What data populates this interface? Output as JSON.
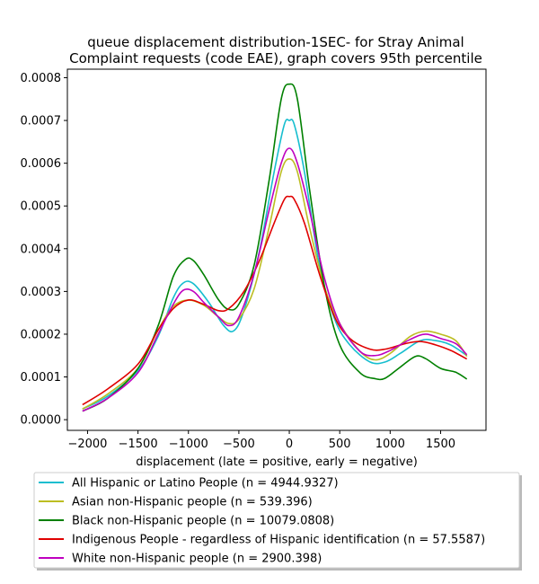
{
  "chart_data": {
    "type": "line",
    "title": [
      "queue displacement distribution-1SEC-  for Stray Animal",
      "Complaint  requests (code EAE), graph covers 95th percentile"
    ],
    "xlabel": "displacement (late = positive, early = negative)",
    "ylabel": "",
    "xlim": [
      -2200,
      1950
    ],
    "ylim": [
      -2.5e-05,
      0.00082
    ],
    "xticks": [
      -2000,
      -1500,
      -1000,
      -500,
      0,
      500,
      1000,
      1500
    ],
    "xtick_labels": [
      "−2000",
      "−1500",
      "−1000",
      "−500",
      "0",
      "500",
      "1000",
      "1500"
    ],
    "yticks": [
      0.0,
      0.0001,
      0.0002,
      0.0003,
      0.0004,
      0.0005,
      0.0006,
      0.0007,
      0.0008
    ],
    "ytick_labels": [
      "0.0000",
      "0.0001",
      "0.0002",
      "0.0003",
      "0.0004",
      "0.0005",
      "0.0006",
      "0.0007",
      "0.0008"
    ],
    "grid": false,
    "legend_placement": "below plot",
    "series": [
      {
        "name": "All Hispanic or Latino People (n = 4944.9327)",
        "color": "#17becf",
        "points": [
          [
            -2050,
            2.5e-05
          ],
          [
            -1800,
            5.5e-05
          ],
          [
            -1500,
            0.000115
          ],
          [
            -1300,
            0.000195
          ],
          [
            -1150,
            0.000285
          ],
          [
            -1050,
            0.00032
          ],
          [
            -950,
            0.000318
          ],
          [
            -800,
            0.000275
          ],
          [
            -650,
            0.00022
          ],
          [
            -550,
            0.000208
          ],
          [
            -450,
            0.000255
          ],
          [
            -300,
            0.00039
          ],
          [
            -150,
            0.00058
          ],
          [
            -50,
            0.00069
          ],
          [
            0,
            0.0007
          ],
          [
            50,
            0.00069
          ],
          [
            150,
            0.00058
          ],
          [
            300,
            0.00036
          ],
          [
            450,
            0.000235
          ],
          [
            600,
            0.000175
          ],
          [
            800,
            0.000135
          ],
          [
            950,
            0.000135
          ],
          [
            1100,
            0.000155
          ],
          [
            1300,
            0.000185
          ],
          [
            1450,
            0.000185
          ],
          [
            1600,
            0.000175
          ],
          [
            1760,
            0.00015
          ]
        ]
      },
      {
        "name": "Asian non-Hispanic people (n = 539.396)",
        "color": "#bcbd22",
        "points": [
          [
            -2050,
            2.5e-05
          ],
          [
            -1800,
            6e-05
          ],
          [
            -1500,
            0.00012
          ],
          [
            -1300,
            0.00021
          ],
          [
            -1150,
            0.000265
          ],
          [
            -1000,
            0.00028
          ],
          [
            -850,
            0.000268
          ],
          [
            -700,
            0.00024
          ],
          [
            -600,
            0.000225
          ],
          [
            -500,
            0.000235
          ],
          [
            -350,
            0.000305
          ],
          [
            -200,
            0.00045
          ],
          [
            -80,
            0.00058
          ],
          [
            0,
            0.00061
          ],
          [
            80,
            0.00058
          ],
          [
            200,
            0.00045
          ],
          [
            350,
            0.00031
          ],
          [
            500,
            0.000225
          ],
          [
            700,
            0.00016
          ],
          [
            850,
            0.00014
          ],
          [
            1000,
            0.000155
          ],
          [
            1200,
            0.000195
          ],
          [
            1350,
            0.000207
          ],
          [
            1500,
            0.0002
          ],
          [
            1650,
            0.000185
          ],
          [
            1760,
            0.000148
          ]
        ]
      },
      {
        "name": "Black non-Hispanic people (n = 10079.0808)",
        "color": "#008000",
        "points": [
          [
            -2050,
            2e-05
          ],
          [
            -1800,
            5e-05
          ],
          [
            -1500,
            0.00012
          ],
          [
            -1300,
            0.00022
          ],
          [
            -1150,
            0.000335
          ],
          [
            -1030,
            0.000375
          ],
          [
            -950,
            0.000372
          ],
          [
            -850,
            0.00034
          ],
          [
            -700,
            0.00028
          ],
          [
            -600,
            0.000258
          ],
          [
            -500,
            0.00027
          ],
          [
            -350,
            0.00036
          ],
          [
            -200,
            0.00056
          ],
          [
            -80,
            0.00075
          ],
          [
            0,
            0.000785
          ],
          [
            80,
            0.00075
          ],
          [
            200,
            0.00054
          ],
          [
            350,
            0.00031
          ],
          [
            500,
            0.000175
          ],
          [
            700,
            0.00011
          ],
          [
            850,
            9.6e-05
          ],
          [
            950,
            9.7e-05
          ],
          [
            1100,
            0.000123
          ],
          [
            1250,
            0.000148
          ],
          [
            1350,
            0.000143
          ],
          [
            1500,
            0.00012
          ],
          [
            1650,
            0.000111
          ],
          [
            1760,
            9.5e-05
          ]
        ]
      },
      {
        "name": "Indigenous People - regardless of Hispanic identification (n = 57.5587)",
        "color": "#e00000",
        "points": [
          [
            -2050,
            3.5e-05
          ],
          [
            -1800,
            7.2e-05
          ],
          [
            -1500,
            0.00013
          ],
          [
            -1300,
            0.00021
          ],
          [
            -1150,
            0.00026
          ],
          [
            -1000,
            0.00028
          ],
          [
            -850,
            0.00027
          ],
          [
            -700,
            0.000255
          ],
          [
            -600,
            0.00026
          ],
          [
            -450,
            0.0003
          ],
          [
            -300,
            0.00037
          ],
          [
            -150,
            0.00046
          ],
          [
            -50,
            0.000515
          ],
          [
            0,
            0.000522
          ],
          [
            50,
            0.000515
          ],
          [
            150,
            0.00046
          ],
          [
            300,
            0.00034
          ],
          [
            450,
            0.00024
          ],
          [
            600,
            0.00019
          ],
          [
            800,
            0.000165
          ],
          [
            950,
            0.000165
          ],
          [
            1150,
            0.000178
          ],
          [
            1300,
            0.000183
          ],
          [
            1450,
            0.000175
          ],
          [
            1600,
            0.000162
          ],
          [
            1760,
            0.000142
          ]
        ]
      },
      {
        "name": "White non-Hispanic people (n = 2900.398)",
        "color": "#bf00bf",
        "points": [
          [
            -2050,
            2e-05
          ],
          [
            -1800,
            5e-05
          ],
          [
            -1500,
            0.00011
          ],
          [
            -1300,
            0.0002
          ],
          [
            -1150,
            0.00027
          ],
          [
            -1050,
            0.000303
          ],
          [
            -950,
            0.0003
          ],
          [
            -850,
            0.000275
          ],
          [
            -700,
            0.00024
          ],
          [
            -600,
            0.00022
          ],
          [
            -500,
            0.00024
          ],
          [
            -350,
            0.00034
          ],
          [
            -200,
            0.00049
          ],
          [
            -80,
            0.0006
          ],
          [
            0,
            0.000635
          ],
          [
            80,
            0.0006
          ],
          [
            200,
            0.00049
          ],
          [
            350,
            0.00033
          ],
          [
            500,
            0.000225
          ],
          [
            700,
            0.00016
          ],
          [
            850,
            0.00015
          ],
          [
            1000,
            0.000162
          ],
          [
            1200,
            0.000188
          ],
          [
            1350,
            0.0002
          ],
          [
            1500,
            0.00019
          ],
          [
            1650,
            0.000178
          ],
          [
            1760,
            0.000152
          ]
        ]
      }
    ]
  }
}
